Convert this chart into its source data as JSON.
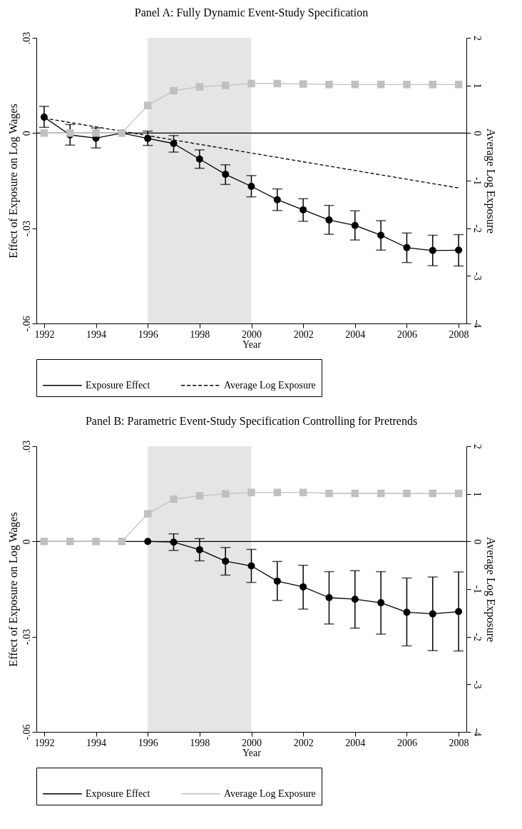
{
  "chart_data": [
    {
      "type": "line",
      "title": "Panel A: Fully Dynamic Event-Study Specification",
      "xlabel": "Year",
      "ylabel": "Effect of Exposure on Log Wages",
      "y2label": "Average Log Exposure",
      "xlim": [
        1991.7,
        2008.3
      ],
      "xticks": [
        1992,
        1994,
        1996,
        1998,
        2000,
        2002,
        2004,
        2006,
        2008
      ],
      "ylim": [
        -0.06,
        0.03
      ],
      "yticks": [
        {
          "value": -0.06,
          "label": "-.06"
        },
        {
          "value": -0.03,
          "label": "-.03"
        },
        0,
        {
          "value": 0.03,
          "label": ".03"
        }
      ],
      "y2lim": [
        -4,
        2
      ],
      "y2ticks": [
        -4,
        -3,
        -2,
        -1,
        0,
        1,
        2
      ],
      "legend": "bottom",
      "bands": [
        {
          "axis": "x",
          "from": 1996,
          "to": 2000,
          "color": "#e5e5e5"
        }
      ],
      "ref_lines": [
        {
          "axis": "y",
          "value": 0,
          "color": "#000000"
        }
      ],
      "series": [
        {
          "name": "Exposure Effect",
          "color": "#000000",
          "marker": "circle",
          "line_style": "solid",
          "x": [
            1992,
            1993,
            1994,
            1995,
            1996,
            1997,
            1998,
            1999,
            2000,
            2001,
            2002,
            2003,
            2004,
            2005,
            2006,
            2007,
            2008
          ],
          "values": [
            0.005,
            -0.0006,
            -0.0016,
            0,
            -0.0017,
            -0.0033,
            -0.0082,
            -0.013,
            -0.0168,
            -0.021,
            -0.0242,
            -0.0274,
            -0.0291,
            -0.0322,
            -0.0361,
            -0.037,
            -0.0369
          ],
          "errors": [
            [
              0.0018,
              0.0084
            ],
            [
              -0.0038,
              0.0027
            ],
            [
              -0.0047,
              0.0016
            ],
            null,
            [
              -0.0039,
              0.0006
            ],
            [
              -0.006,
              -0.0008
            ],
            [
              -0.0111,
              -0.0053
            ],
            [
              -0.0162,
              -0.01
            ],
            [
              -0.0201,
              -0.0134
            ],
            [
              -0.0244,
              -0.0176
            ],
            [
              -0.0278,
              -0.0207
            ],
            [
              -0.0319,
              -0.0228
            ],
            [
              -0.0337,
              -0.0245
            ],
            [
              -0.0369,
              -0.0276
            ],
            [
              -0.0408,
              -0.0315
            ],
            [
              -0.0418,
              -0.0322
            ],
            [
              -0.0419,
              -0.032
            ]
          ]
        },
        {
          "name": "Average Log Exposure",
          "color": "#000000",
          "marker": "none",
          "line_style": "dashed",
          "x": [
            1992,
            2008
          ],
          "values": [
            0.0047,
            -0.0173
          ]
        },
        {
          "color": "#c0c0c0",
          "marker": "square",
          "line_style": "solid",
          "axis": "y2",
          "x": [
            1992,
            1993,
            1994,
            1995,
            1996,
            1997,
            1998,
            1999,
            2000,
            2001,
            2002,
            2003,
            2004,
            2005,
            2006,
            2007,
            2008
          ],
          "values": [
            0,
            0,
            0,
            0,
            0.58,
            0.89,
            0.97,
            1.0,
            1.04,
            1.04,
            1.03,
            1.02,
            1.02,
            1.02,
            1.02,
            1.02,
            1.02
          ]
        }
      ]
    },
    {
      "type": "line",
      "title": "Panel B: Parametric Event-Study Specification Controlling for Pretrends",
      "xlabel": "Year",
      "ylabel": "Effect of Exposure on Log Wages",
      "y2label": "Average Log Exposure",
      "xlim": [
        1991.7,
        2008.3
      ],
      "xticks": [
        1992,
        1994,
        1996,
        1998,
        2000,
        2002,
        2004,
        2006,
        2008
      ],
      "ylim": [
        -0.06,
        0.03
      ],
      "yticks": [
        {
          "value": -0.06,
          "label": "-.06"
        },
        {
          "value": -0.03,
          "label": "-.03"
        },
        0,
        {
          "value": 0.03,
          "label": ".03"
        }
      ],
      "y2lim": [
        -4,
        2
      ],
      "y2ticks": [
        -4,
        -3,
        -2,
        -1,
        0,
        1,
        2
      ],
      "legend": "bottom",
      "bands": [
        {
          "axis": "x",
          "from": 1996,
          "to": 2000,
          "color": "#e5e5e5"
        }
      ],
      "ref_lines": [
        {
          "axis": "y",
          "value": 0,
          "color": "#000000"
        }
      ],
      "series": [
        {
          "name": "Exposure Effect",
          "color": "#000000",
          "marker": "circle",
          "line_style": "solid",
          "x": [
            1996,
            1997,
            1998,
            1999,
            2000,
            2001,
            2002,
            2003,
            2004,
            2005,
            2006,
            2007,
            2008
          ],
          "values": [
            0,
            -0.0002,
            -0.0026,
            -0.0062,
            -0.0077,
            -0.0125,
            -0.0143,
            -0.0177,
            -0.0182,
            -0.0193,
            -0.0223,
            -0.0228,
            -0.0221
          ],
          "errors": [
            null,
            [
              -0.0028,
              0.0024
            ],
            [
              -0.0061,
              0.0009
            ],
            [
              -0.0106,
              -0.0019
            ],
            [
              -0.0129,
              -0.0025
            ],
            [
              -0.0186,
              -0.0063
            ],
            [
              -0.0213,
              -0.0075
            ],
            [
              -0.026,
              -0.0095
            ],
            [
              -0.0273,
              -0.0092
            ],
            [
              -0.0292,
              -0.0095
            ],
            [
              -0.0329,
              -0.0115
            ],
            [
              -0.0344,
              -0.0112
            ],
            [
              -0.0345,
              -0.0096
            ]
          ]
        },
        {
          "name": "Average Log Exposure",
          "color": "#c0c0c0",
          "marker": "square",
          "line_style": "solid",
          "axis": "y2",
          "x": [
            1992,
            1993,
            1994,
            1995,
            1996,
            1997,
            1998,
            1999,
            2000,
            2001,
            2002,
            2003,
            2004,
            2005,
            2006,
            2007,
            2008
          ],
          "values": [
            0,
            0,
            0,
            0,
            0.58,
            0.89,
            0.96,
            1.0,
            1.03,
            1.03,
            1.03,
            1.01,
            1.01,
            1.01,
            1.01,
            1.01,
            1.01
          ]
        }
      ]
    }
  ]
}
